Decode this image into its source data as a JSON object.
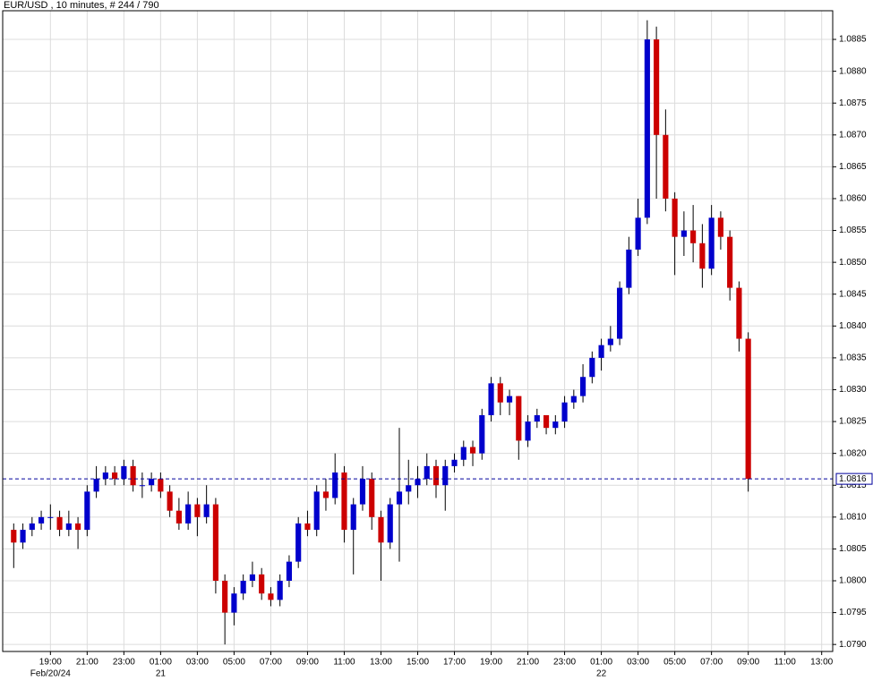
{
  "chart_data": {
    "type": "candlestick",
    "title": "EUR/USD , 10 minutes, # 244 / 790",
    "up_color": "#0000cc",
    "down_color": "#cc0000",
    "wick_color": "#000000",
    "grid": true,
    "xlim": [
      16.4,
      61.6
    ],
    "ylim": [
      1.07889,
      1.08895
    ],
    "xticks": [
      {
        "value": 19,
        "label": "19:00"
      },
      {
        "value": 21,
        "label": "21:00"
      },
      {
        "value": 23,
        "label": "23:00"
      },
      {
        "value": 25,
        "label": "01:00"
      },
      {
        "value": 27,
        "label": "03:00"
      },
      {
        "value": 29,
        "label": "05:00"
      },
      {
        "value": 31,
        "label": "07:00"
      },
      {
        "value": 33,
        "label": "09:00"
      },
      {
        "value": 35,
        "label": "11:00"
      },
      {
        "value": 37,
        "label": "13:00"
      },
      {
        "value": 39,
        "label": "15:00"
      },
      {
        "value": 41,
        "label": "17:00"
      },
      {
        "value": 43,
        "label": "19:00"
      },
      {
        "value": 45,
        "label": "21:00"
      },
      {
        "value": 47,
        "label": "23:00"
      },
      {
        "value": 49,
        "label": "01:00"
      },
      {
        "value": 51,
        "label": "03:00"
      },
      {
        "value": 53,
        "label": "05:00"
      },
      {
        "value": 55,
        "label": "07:00"
      },
      {
        "value": 57,
        "label": "09:00"
      },
      {
        "value": 59,
        "label": "11:00"
      },
      {
        "value": 61,
        "label": "13:00"
      }
    ],
    "x_date_labels": [
      {
        "value": 19,
        "label": "Feb/20/24"
      },
      {
        "value": 25,
        "label": "21"
      },
      {
        "value": 49,
        "label": "22"
      }
    ],
    "yticks": [
      {
        "value": 1.079,
        "label": "1.0790"
      },
      {
        "value": 1.0795,
        "label": "1.0795"
      },
      {
        "value": 1.08,
        "label": "1.0800"
      },
      {
        "value": 1.0805,
        "label": "1.0805"
      },
      {
        "value": 1.081,
        "label": "1.0810"
      },
      {
        "value": 1.0815,
        "label": "1.0815"
      },
      {
        "value": 1.082,
        "label": "1.0820"
      },
      {
        "value": 1.0825,
        "label": "1.0825"
      },
      {
        "value": 1.083,
        "label": "1.0830"
      },
      {
        "value": 1.0835,
        "label": "1.0835"
      },
      {
        "value": 1.084,
        "label": "1.0840"
      },
      {
        "value": 1.0845,
        "label": "1.0845"
      },
      {
        "value": 1.085,
        "label": "1.0850"
      },
      {
        "value": 1.0855,
        "label": "1.0855"
      },
      {
        "value": 1.086,
        "label": "1.0860"
      },
      {
        "value": 1.0865,
        "label": "1.0865"
      },
      {
        "value": 1.087,
        "label": "1.0870"
      },
      {
        "value": 1.0875,
        "label": "1.0875"
      },
      {
        "value": 1.088,
        "label": "1.0880"
      },
      {
        "value": 1.0885,
        "label": "1.0885"
      }
    ],
    "last_price": {
      "value": 1.0816,
      "label": "1.0816",
      "color": "#00009c"
    },
    "x": [
      17.0,
      17.5,
      18.0,
      18.5,
      19.0,
      19.5,
      20.0,
      20.5,
      21.0,
      21.5,
      22.0,
      22.5,
      23.0,
      23.5,
      24.0,
      24.5,
      25.0,
      25.5,
      26.0,
      26.5,
      27.0,
      27.5,
      28.0,
      28.5,
      29.0,
      29.5,
      30.0,
      30.5,
      31.0,
      31.5,
      32.0,
      32.5,
      33.0,
      33.5,
      34.0,
      34.5,
      35.0,
      35.5,
      36.0,
      36.5,
      37.0,
      37.5,
      38.0,
      38.5,
      39.0,
      39.5,
      40.0,
      40.5,
      41.0,
      41.5,
      42.0,
      42.5,
      43.0,
      43.5,
      44.0,
      44.5,
      45.0,
      45.5,
      46.0,
      46.5,
      47.0,
      47.5,
      48.0,
      48.5,
      49.0,
      49.5,
      50.0,
      50.5,
      51.0,
      51.5,
      52.0,
      52.5,
      53.0,
      53.5,
      54.0,
      54.5,
      55.0,
      55.5,
      56.0,
      56.5,
      57.0
    ],
    "open": [
      1.0808,
      1.0806,
      1.0808,
      1.0809,
      1.081,
      1.081,
      1.0808,
      1.0809,
      1.0808,
      1.0814,
      1.0816,
      1.0817,
      1.0816,
      1.0818,
      1.0815,
      1.0815,
      1.0816,
      1.0814,
      1.0811,
      1.0809,
      1.0812,
      1.081,
      1.0812,
      1.08,
      1.0795,
      1.0798,
      1.08,
      1.0801,
      1.0798,
      1.0797,
      1.08,
      1.0803,
      1.0809,
      1.0808,
      1.0814,
      1.0813,
      1.0817,
      1.0808,
      1.0812,
      1.0816,
      1.081,
      1.0806,
      1.0812,
      1.0814,
      1.0815,
      1.0816,
      1.0818,
      1.0815,
      1.0818,
      1.0819,
      1.0821,
      1.082,
      1.0826,
      1.0831,
      1.0828,
      1.0829,
      1.0822,
      1.0825,
      1.0826,
      1.0824,
      1.0825,
      1.0828,
      1.0829,
      1.0832,
      1.0835,
      1.0837,
      1.0838,
      1.0846,
      1.0852,
      1.0857,
      1.0885,
      1.087,
      1.086,
      1.0854,
      1.0855,
      1.0853,
      1.0849,
      1.0857,
      1.0854,
      1.0846,
      1.0838
    ],
    "high": [
      1.0809,
      1.0809,
      1.081,
      1.0811,
      1.0812,
      1.0811,
      1.0811,
      1.081,
      1.0815,
      1.0818,
      1.0818,
      1.0818,
      1.0819,
      1.0819,
      1.0817,
      1.0817,
      1.0817,
      1.0815,
      1.0813,
      1.0814,
      1.0813,
      1.0815,
      1.0813,
      1.0801,
      1.0799,
      1.0801,
      1.0803,
      1.0802,
      1.0799,
      1.0801,
      1.0804,
      1.081,
      1.0811,
      1.0815,
      1.0816,
      1.082,
      1.0818,
      1.0813,
      1.0818,
      1.0817,
      1.0811,
      1.0813,
      1.0824,
      1.0819,
      1.0818,
      1.082,
      1.0819,
      1.0819,
      1.082,
      1.0822,
      1.0822,
      1.0827,
      1.0832,
      1.0832,
      1.083,
      1.0829,
      1.0826,
      1.0827,
      1.0826,
      1.0826,
      1.0829,
      1.083,
      1.0834,
      1.0836,
      1.0838,
      1.084,
      1.0847,
      1.0854,
      1.086,
      1.0888,
      1.0887,
      1.0874,
      1.0861,
      1.0858,
      1.0859,
      1.0856,
      1.0859,
      1.0858,
      1.0855,
      1.0847,
      1.0839
    ],
    "low": [
      1.0802,
      1.0805,
      1.0807,
      1.0808,
      1.0808,
      1.0807,
      1.0807,
      1.0805,
      1.0807,
      1.0813,
      1.0815,
      1.0815,
      1.0815,
      1.0814,
      1.0813,
      1.0814,
      1.0813,
      1.081,
      1.0808,
      1.0808,
      1.0807,
      1.0809,
      1.0798,
      1.079,
      1.0793,
      1.0797,
      1.0799,
      1.0797,
      1.0796,
      1.0796,
      1.0799,
      1.0802,
      1.0807,
      1.0807,
      1.0811,
      1.0812,
      1.0806,
      1.0801,
      1.0811,
      1.0808,
      1.08,
      1.0805,
      1.0803,
      1.0812,
      1.0813,
      1.0815,
      1.0813,
      1.0811,
      1.0817,
      1.0818,
      1.0818,
      1.0819,
      1.0825,
      1.0826,
      1.0826,
      1.0819,
      1.0821,
      1.0824,
      1.0823,
      1.0823,
      1.0824,
      1.0827,
      1.0828,
      1.0831,
      1.0833,
      1.0836,
      1.0837,
      1.0845,
      1.0851,
      1.0856,
      1.086,
      1.0858,
      1.0848,
      1.0851,
      1.085,
      1.0846,
      1.0848,
      1.0852,
      1.0844,
      1.0836,
      1.0814
    ],
    "close": [
      1.0806,
      1.0808,
      1.0809,
      1.081,
      1.081,
      1.0808,
      1.0809,
      1.0808,
      1.0814,
      1.0816,
      1.0817,
      1.0816,
      1.0818,
      1.0815,
      1.0815,
      1.0816,
      1.0814,
      1.0811,
      1.0809,
      1.0812,
      1.081,
      1.0812,
      1.08,
      1.0795,
      1.0798,
      1.08,
      1.0801,
      1.0798,
      1.0797,
      1.08,
      1.0803,
      1.0809,
      1.0808,
      1.0814,
      1.0813,
      1.0817,
      1.0808,
      1.0812,
      1.0816,
      1.081,
      1.0806,
      1.0812,
      1.0814,
      1.0815,
      1.0816,
      1.0818,
      1.0815,
      1.0818,
      1.0819,
      1.0821,
      1.082,
      1.0826,
      1.0831,
      1.0828,
      1.0829,
      1.0822,
      1.0825,
      1.0826,
      1.0824,
      1.0825,
      1.0828,
      1.0829,
      1.0832,
      1.0835,
      1.0837,
      1.0838,
      1.0846,
      1.0852,
      1.0857,
      1.0885,
      1.087,
      1.086,
      1.0854,
      1.0855,
      1.0853,
      1.0849,
      1.0857,
      1.0854,
      1.0846,
      1.0838,
      1.0816
    ]
  }
}
